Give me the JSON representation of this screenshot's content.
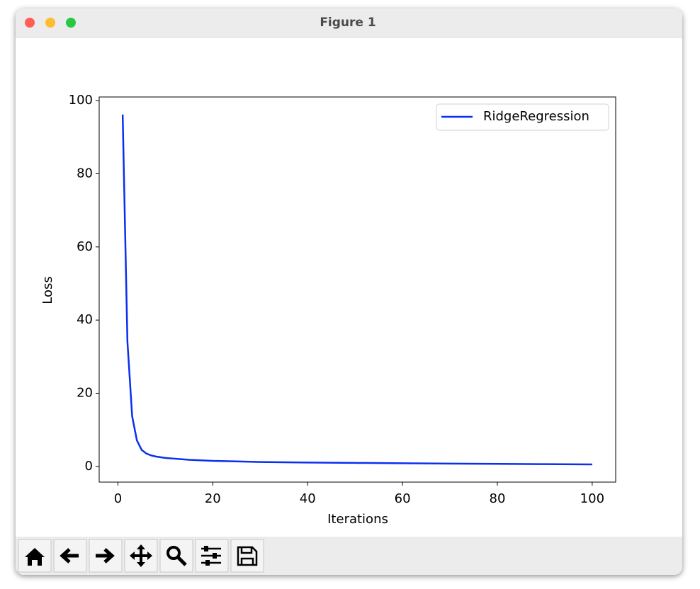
{
  "window": {
    "title": "Figure 1"
  },
  "chart_data": {
    "type": "line",
    "xlabel": "Iterations",
    "ylabel": "Loss",
    "x": [
      1,
      2,
      3,
      4,
      5,
      6,
      7,
      8,
      9,
      10,
      12,
      15,
      20,
      25,
      30,
      40,
      50,
      60,
      70,
      80,
      90,
      100
    ],
    "series": [
      {
        "name": "RidgeRegression",
        "color": "#0a2ff0",
        "values": [
          96.2,
          34.2,
          13.7,
          7.1,
          4.5,
          3.5,
          3.0,
          2.7,
          2.5,
          2.3,
          2.1,
          1.8,
          1.5,
          1.35,
          1.2,
          1.05,
          0.95,
          0.85,
          0.75,
          0.68,
          0.6,
          0.55
        ]
      }
    ],
    "xlim": [
      -3.95,
      104.95
    ],
    "ylim": [
      -4.3,
      101.0
    ],
    "xticks": [
      0,
      20,
      40,
      60,
      80,
      100
    ],
    "yticks": [
      0,
      20,
      40,
      60,
      80,
      100
    ],
    "legend": "upper right",
    "grid": false
  }
}
